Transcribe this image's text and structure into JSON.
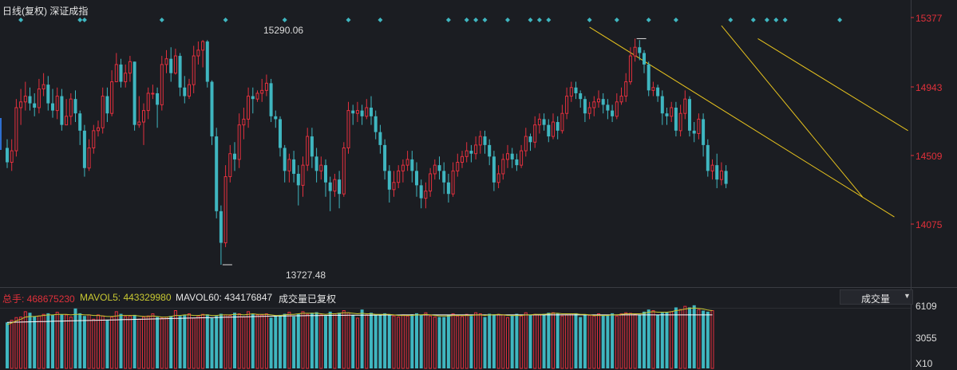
{
  "header": {
    "title": "日线(复权) 深证成指"
  },
  "price_axis": {
    "ticks": [
      "15377",
      "14943",
      "14509",
      "14075"
    ]
  },
  "annotations": {
    "high": "15290.06",
    "low": "13727.48"
  },
  "volume_bar": {
    "total_label": "总手: 468675230",
    "ma5_label": "MAVOL5: 443329980",
    "ma60_label": "MAVOL60: 434176847",
    "note": "成交量已复权",
    "indicator_select": "成交量",
    "ticks": [
      "6109",
      "3055",
      "X10"
    ]
  },
  "colors": {
    "background": "#1b1d22",
    "up": "#e3303e",
    "down": "#3fb6c0",
    "ma5": "#c8c832",
    "ma60": "#ffffff",
    "trendline": "#e6c21e",
    "price_axis_text": "#e0303a",
    "total_label": "#e0303a",
    "ma5_label": "#c8c832",
    "signal_marker": "#3fb6c0"
  },
  "chart_data": {
    "type": "candlestick",
    "price_range": [
      13600,
      15430
    ],
    "high": 15290.06,
    "low": 13727.48,
    "candles": [
      [
        14540,
        14440,
        14600,
        14400
      ],
      [
        14440,
        14520,
        14600,
        14380
      ],
      [
        14520,
        14820,
        14880,
        14480
      ],
      [
        14820,
        14860,
        14950,
        14700
      ],
      [
        14860,
        14900,
        15000,
        14800
      ],
      [
        14900,
        14850,
        14960,
        14800
      ],
      [
        14850,
        14820,
        14920,
        14760
      ],
      [
        14820,
        14950,
        15020,
        14780
      ],
      [
        14950,
        14980,
        15060,
        14900
      ],
      [
        14980,
        14850,
        15040,
        14800
      ],
      [
        14850,
        14800,
        14950,
        14750
      ],
      [
        14800,
        14900,
        14960,
        14740
      ],
      [
        14900,
        14700,
        14950,
        14660
      ],
      [
        14700,
        14760,
        14880,
        14700
      ],
      [
        14760,
        14880,
        14920,
        14700
      ],
      [
        14880,
        14780,
        14940,
        14720
      ],
      [
        14780,
        14660,
        14800,
        14560
      ],
      [
        14660,
        14400,
        14700,
        14340
      ],
      [
        14400,
        14540,
        14600,
        14380
      ],
      [
        14540,
        14660,
        14700,
        14500
      ],
      [
        14660,
        14680,
        14730,
        14620
      ],
      [
        14680,
        14900,
        14960,
        14640
      ],
      [
        14900,
        14780,
        14960,
        14720
      ],
      [
        14780,
        15000,
        15080,
        14760
      ],
      [
        15000,
        15120,
        15200,
        15000
      ],
      [
        15120,
        15000,
        15160,
        14960
      ],
      [
        15000,
        15060,
        15120,
        14960
      ],
      [
        15060,
        15140,
        15180,
        15000
      ],
      [
        15140,
        14700,
        15140,
        14660
      ],
      [
        14700,
        14720,
        14900,
        14680
      ],
      [
        14720,
        14800,
        14850,
        14560
      ],
      [
        14800,
        14920,
        14960,
        14740
      ],
      [
        14920,
        14920,
        14980,
        14880
      ],
      [
        14920,
        14840,
        14960,
        14680
      ],
      [
        14840,
        15120,
        15180,
        14800
      ],
      [
        15120,
        15160,
        15220,
        15060
      ],
      [
        15160,
        15060,
        15240,
        15000
      ],
      [
        15060,
        15180,
        15230,
        15050
      ],
      [
        15180,
        14960,
        15200,
        14900
      ],
      [
        14960,
        14900,
        15040,
        14850
      ],
      [
        14900,
        14980,
        15020,
        14880
      ],
      [
        14980,
        15180,
        15250,
        14920
      ],
      [
        15180,
        15220,
        15280,
        15120
      ],
      [
        15220,
        15280,
        15290.06,
        15100
      ],
      [
        15280,
        15000,
        15290,
        14960
      ],
      [
        15000,
        14620,
        15010,
        14560
      ],
      [
        14620,
        14100,
        14680,
        14050
      ],
      [
        14100,
        13880,
        14140,
        13727.48
      ],
      [
        13880,
        14340,
        14420,
        13850
      ],
      [
        14340,
        14500,
        14560,
        14300
      ],
      [
        14500,
        14460,
        14580,
        14380
      ],
      [
        14460,
        14700,
        14780,
        14400
      ],
      [
        14700,
        14740,
        14820,
        14600
      ],
      [
        14740,
        14900,
        14960,
        14680
      ],
      [
        14900,
        14880,
        14960,
        14780
      ],
      [
        14880,
        14920,
        14940,
        14860
      ],
      [
        14920,
        14940,
        15020,
        14860
      ],
      [
        14940,
        14990,
        15050,
        14900
      ],
      [
        14990,
        14760,
        15020,
        14720
      ],
      [
        14760,
        14740,
        14800,
        14680
      ],
      [
        14740,
        14540,
        14760,
        14480
      ],
      [
        14540,
        14380,
        14560,
        14300
      ],
      [
        14380,
        14460,
        14500,
        14300
      ],
      [
        14460,
        14360,
        14520,
        14300
      ],
      [
        14360,
        14280,
        14420,
        14140
      ],
      [
        14280,
        14420,
        14480,
        14200
      ],
      [
        14420,
        14620,
        14680,
        14380
      ],
      [
        14620,
        14480,
        14680,
        14400
      ],
      [
        14480,
        14380,
        14540,
        14300
      ],
      [
        14380,
        14420,
        14480,
        14320
      ],
      [
        14420,
        14300,
        14460,
        14200
      ],
      [
        14300,
        14240,
        14340,
        14100
      ],
      [
        14240,
        14320,
        14360,
        14200
      ],
      [
        14320,
        14220,
        14380,
        14120
      ],
      [
        14220,
        14540,
        14580,
        14200
      ],
      [
        14540,
        14800,
        14860,
        14500
      ],
      [
        14800,
        14780,
        14840,
        14700
      ],
      [
        14780,
        14800,
        14860,
        14720
      ],
      [
        14800,
        14760,
        14840,
        14700
      ],
      [
        14760,
        14820,
        14880,
        14740
      ],
      [
        14820,
        14760,
        14900,
        14700
      ],
      [
        14760,
        14650,
        14800,
        14600
      ],
      [
        14650,
        14560,
        14700,
        14500
      ],
      [
        14560,
        14380,
        14600,
        14320
      ],
      [
        14380,
        14250,
        14420,
        14160
      ],
      [
        14250,
        14300,
        14380,
        14200
      ],
      [
        14300,
        14380,
        14420,
        14260
      ],
      [
        14380,
        14420,
        14460,
        14300
      ],
      [
        14420,
        14460,
        14520,
        14380
      ],
      [
        14460,
        14380,
        14520,
        14300
      ],
      [
        14380,
        14280,
        14440,
        14200
      ],
      [
        14280,
        14190,
        14320,
        14120
      ],
      [
        14190,
        14240,
        14300,
        14120
      ],
      [
        14240,
        14360,
        14400,
        14200
      ],
      [
        14360,
        14420,
        14460,
        14320
      ],
      [
        14420,
        14380,
        14480,
        14320
      ],
      [
        14380,
        14300,
        14440,
        14220
      ],
      [
        14300,
        14220,
        14360,
        14160
      ],
      [
        14220,
        14380,
        14440,
        14200
      ],
      [
        14380,
        14440,
        14500,
        14340
      ],
      [
        14440,
        14480,
        14520,
        14400
      ],
      [
        14480,
        14520,
        14580,
        14440
      ],
      [
        14520,
        14500,
        14560,
        14440
      ],
      [
        14500,
        14560,
        14620,
        14460
      ],
      [
        14560,
        14620,
        14660,
        14500
      ],
      [
        14620,
        14560,
        14660,
        14500
      ],
      [
        14560,
        14480,
        14600,
        14420
      ],
      [
        14480,
        14300,
        14520,
        14240
      ],
      [
        14300,
        14360,
        14420,
        14260
      ],
      [
        14360,
        14460,
        14500,
        14320
      ],
      [
        14460,
        14500,
        14560,
        14400
      ],
      [
        14500,
        14460,
        14540,
        14400
      ],
      [
        14460,
        14420,
        14500,
        14380
      ],
      [
        14420,
        14520,
        14560,
        14400
      ],
      [
        14520,
        14620,
        14680,
        14480
      ],
      [
        14620,
        14580,
        14640,
        14520
      ],
      [
        14580,
        14700,
        14760,
        14540
      ],
      [
        14700,
        14740,
        14780,
        14640
      ],
      [
        14740,
        14700,
        14780,
        14660
      ],
      [
        14700,
        14620,
        14740,
        14580
      ],
      [
        14620,
        14720,
        14780,
        14600
      ],
      [
        14720,
        14660,
        14760,
        14600
      ],
      [
        14660,
        14780,
        14840,
        14640
      ],
      [
        14780,
        14900,
        14960,
        14740
      ],
      [
        14900,
        14960,
        15000,
        14860
      ],
      [
        14960,
        14920,
        15000,
        14880
      ],
      [
        14920,
        14880,
        14940,
        14820
      ],
      [
        14880,
        14780,
        14900,
        14720
      ],
      [
        14780,
        14820,
        14860,
        14740
      ],
      [
        14820,
        14860,
        14900,
        14760
      ],
      [
        14860,
        14880,
        14940,
        14820
      ],
      [
        14880,
        14840,
        14920,
        14780
      ],
      [
        14840,
        14800,
        14880,
        14740
      ],
      [
        14800,
        14760,
        14840,
        14720
      ],
      [
        14760,
        14860,
        14920,
        14740
      ],
      [
        14860,
        14900,
        14960,
        14840
      ],
      [
        14900,
        15000,
        15060,
        14860
      ],
      [
        15000,
        15180,
        15240,
        14980
      ],
      [
        15180,
        15240,
        15300,
        15140
      ],
      [
        15240,
        15200,
        15290,
        15150
      ],
      [
        15200,
        15120,
        15220,
        15060
      ],
      [
        15120,
        14940,
        15140,
        14900
      ],
      [
        14940,
        14960,
        15000,
        14900
      ],
      [
        14960,
        14900,
        14980,
        14860
      ],
      [
        14900,
        14780,
        14940,
        14700
      ],
      [
        14780,
        14760,
        14820,
        14700
      ],
      [
        14760,
        14820,
        14860,
        14720
      ],
      [
        14820,
        14660,
        14860,
        14620
      ],
      [
        14660,
        14780,
        14840,
        14620
      ],
      [
        14780,
        14880,
        14940,
        14740
      ],
      [
        14880,
        14660,
        14900,
        14620
      ],
      [
        14660,
        14640,
        14720,
        14580
      ],
      [
        14640,
        14740,
        14780,
        14600
      ],
      [
        14740,
        14560,
        14780,
        14480
      ],
      [
        14560,
        14380,
        14600,
        14340
      ],
      [
        14380,
        14420,
        14460,
        14320
      ],
      [
        14420,
        14320,
        14500,
        14260
      ],
      [
        14320,
        14380,
        14440,
        14280
      ],
      [
        14380,
        14290,
        14420,
        14260
      ]
    ],
    "volume_range": [
      0,
      6109
    ],
    "volumes": [
      4300,
      4500,
      4750,
      4800,
      5300,
      5200,
      4850,
      4900,
      5050,
      5150,
      5000,
      5250,
      5050,
      5000,
      4800,
      5600,
      5150,
      4900,
      5000,
      4600,
      5000,
      4900,
      4500,
      4800,
      5300,
      5100,
      4850,
      4900,
      5000,
      4600,
      4800,
      4900,
      5100,
      4800,
      4700,
      4800,
      4900,
      5400,
      4900,
      5000,
      5100,
      4700,
      4900,
      5050,
      5050,
      4700,
      4900,
      5100,
      5000,
      4950,
      5200,
      5100,
      4800,
      5300,
      5100,
      5000,
      5000,
      5100,
      4750,
      4900,
      5000,
      5100,
      5250,
      4850,
      5100,
      5300,
      5050,
      5200,
      5250,
      5000,
      4900,
      5300,
      5100,
      5200,
      5400,
      5200,
      5000,
      4700,
      5500,
      5000,
      5200,
      5000,
      5050,
      5150,
      5050,
      4900,
      4800,
      5000,
      4900,
      5050,
      5150,
      5000,
      5200,
      4900,
      4800,
      4800,
      4800,
      5000,
      5100,
      4900,
      4850,
      5050,
      4900,
      5200,
      5100,
      4800,
      5100,
      5050,
      5050,
      5000,
      4750,
      5000,
      5100,
      4900,
      5200,
      5000,
      5050,
      5000,
      5100,
      5200,
      5200,
      5150,
      4900,
      5000,
      5100,
      5150,
      4800,
      5050,
      4950,
      4900,
      5100,
      4950,
      5000,
      5150,
      4900,
      5100,
      5200,
      5150,
      5050,
      5000,
      5300,
      5500,
      5400,
      5000,
      5200,
      5250,
      5300,
      5700,
      5500,
      5800,
      5700,
      5900,
      5500,
      5400,
      5300,
      5400
    ],
    "ma5": [
      4100,
      4250,
      4450,
      4600,
      4800,
      4850,
      4850,
      4900,
      4950,
      5000,
      5000,
      5050,
      5050,
      5050,
      5000,
      5050,
      5050,
      5000,
      5000,
      4950,
      4950,
      4900,
      4850,
      4850,
      4900,
      4950,
      4950,
      4950,
      4950,
      4900,
      4850,
      4850,
      4900,
      4850,
      4800,
      4800,
      4850,
      4950,
      4950,
      5000,
      5000,
      4950,
      4950,
      5000,
      5000,
      4950,
      4950,
      5000,
      5000,
      5000,
      5050,
      5050,
      5000,
      5050,
      5100,
      5050,
      5050,
      5050,
      5000,
      4950,
      4950,
      5000,
      5050,
      5050,
      5100,
      5150,
      5150,
      5150,
      5150,
      5100,
      5050,
      5100,
      5100,
      5150,
      5200,
      5200,
      5150,
      5100,
      5150,
      5100,
      5100,
      5050,
      5050,
      5050,
      5050,
      5000,
      4950,
      4950,
      4950,
      4950,
      5000,
      5000,
      5050,
      5000,
      4950,
      4900,
      4900,
      4900,
      4950,
      4950,
      4950,
      4950,
      4950,
      5000,
      5000,
      4950,
      5000,
      5000,
      5050,
      5000,
      4950,
      4950,
      4950,
      4950,
      5000,
      5000,
      5050,
      5050,
      5050,
      5100,
      5150,
      5150,
      5100,
      5100,
      5100,
      5100,
      5050,
      5050,
      5000,
      4950,
      4950,
      4950,
      4950,
      5000,
      5000,
      5050,
      5100,
      5100,
      5100,
      5100,
      5150,
      5250,
      5300,
      5250,
      5250,
      5250,
      5300,
      5400,
      5450,
      5550,
      5600,
      5650,
      5600,
      5550,
      5450,
      5400
    ],
    "ma60": [
      4300,
      4310,
      4320,
      4330,
      4340,
      4350,
      4360,
      4370,
      4380,
      4390,
      4400,
      4410,
      4420,
      4430,
      4440,
      4450,
      4460,
      4470,
      4480,
      4490,
      4500,
      4510,
      4520,
      4530,
      4540,
      4550,
      4560,
      4570,
      4580,
      4590,
      4600,
      4610,
      4620,
      4630,
      4640,
      4650,
      4660,
      4670,
      4680,
      4690,
      4700,
      4710,
      4720,
      4730,
      4740,
      4750,
      4760,
      4770,
      4780,
      4790,
      4800,
      4810,
      4820,
      4830,
      4840,
      4850,
      4860,
      4870,
      4880,
      4890,
      4900,
      4905,
      4910,
      4915,
      4920,
      4925,
      4930,
      4935,
      4940,
      4945,
      4950,
      4955,
      4960,
      4962,
      4965,
      4968,
      4970,
      4972,
      4975,
      4978,
      4980,
      4982,
      4985,
      4988,
      4990,
      4992,
      4995,
      4997,
      5000,
      5000,
      5000,
      5000,
      5000,
      5000,
      5000,
      5000,
      5000,
      5000,
      5000,
      5000,
      5000,
      5000,
      5000,
      5000,
      5000,
      5000,
      5000,
      5000,
      5000,
      5000,
      5000,
      5000,
      5000,
      5000,
      5000,
      5000,
      5000,
      5000,
      5000,
      5000,
      5000,
      5000,
      5000,
      5000,
      5000,
      5000,
      5000,
      5000,
      5000,
      5000,
      5000,
      5000,
      5000,
      5000,
      5000,
      5000,
      5000,
      5000,
      5000,
      5000,
      5000,
      5000,
      5000,
      5000,
      5000,
      5000,
      5000,
      5000,
      5000,
      5000,
      5000,
      5000,
      5000,
      5000,
      5000,
      5000
    ],
    "signal_markers": [
      3,
      16,
      17,
      34,
      48,
      61,
      75,
      82,
      97,
      101,
      103,
      105,
      110,
      115,
      117,
      119,
      128,
      134,
      141,
      147,
      159,
      164,
      167,
      169,
      171,
      183
    ],
    "trendlines": [
      {
        "from": [
          128,
          15380
        ],
        "to": [
          195,
          14060
        ]
      },
      {
        "from": [
          157,
          15390
        ],
        "to": [
          188,
          14200
        ]
      },
      {
        "from": [
          165,
          15300
        ],
        "to": [
          198,
          14660
        ]
      }
    ]
  }
}
